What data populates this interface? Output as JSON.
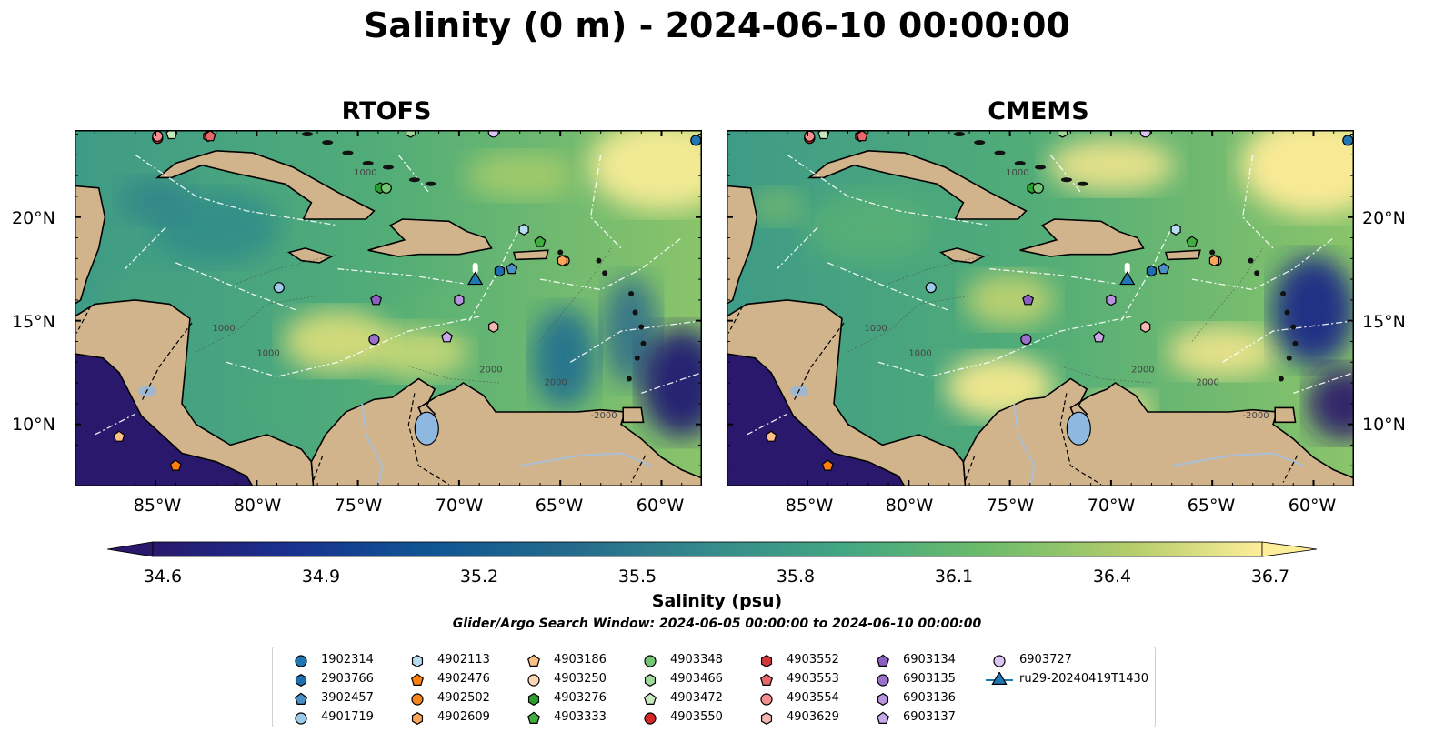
{
  "title": "Salinity (0 m) - 2024-06-10 00:00:00",
  "panels": [
    {
      "name": "RTOFS",
      "variant": "rtofs"
    },
    {
      "name": "CMEMS",
      "variant": "cmems"
    }
  ],
  "map": {
    "lon_range": [
      -89,
      -58
    ],
    "lat_range": [
      7,
      24.2
    ],
    "lat_ticks": [
      "20°N",
      "15°N",
      "10°N"
    ],
    "lon_ticks": [
      "85°W",
      "80°W",
      "75°W",
      "70°W",
      "65°W",
      "60°W"
    ],
    "contour_labels": [
      "1000",
      "1000",
      "2000",
      "2000",
      "-2000",
      "1000"
    ],
    "land_color": "#d2b48c"
  },
  "colorbar": {
    "label": "Salinity (psu)",
    "ticks": [
      "34.6",
      "34.9",
      "35.2",
      "35.5",
      "35.8",
      "36.1",
      "36.4",
      "36.7"
    ],
    "range": [
      34.6,
      36.7
    ],
    "colormap": "haline",
    "extend": "both"
  },
  "search_window": "Glider/Argo Search Window: 2024-06-05 00:00:00 to 2024-06-10 00:00:00",
  "legend": [
    {
      "id": "1902314",
      "marker": "circle",
      "color": "#1f77b4",
      "lon": -58.3,
      "lat": 23.7
    },
    {
      "id": "2903766",
      "marker": "hexagon",
      "color": "#1f6fb0",
      "lon": -68.0,
      "lat": 17.4
    },
    {
      "id": "3902457",
      "marker": "pentagon",
      "color": "#4a90c6",
      "lon": -67.4,
      "lat": 17.5
    },
    {
      "id": "4901719",
      "marker": "circle",
      "color": "#9ec9e8",
      "lon": -78.9,
      "lat": 16.6
    },
    {
      "id": "4902113",
      "marker": "hexagon",
      "color": "#b8dcf2",
      "lon": -66.8,
      "lat": 19.4
    },
    {
      "id": "4902476",
      "marker": "pentagon",
      "color": "#ff7f0e",
      "lon": -84.0,
      "lat": 8.0
    },
    {
      "id": "4902502",
      "marker": "circle",
      "color": "#f5841f",
      "lon": -64.8,
      "lat": 17.9
    },
    {
      "id": "4902609",
      "marker": "hexagon",
      "color": "#f9a65a",
      "lon": -64.9,
      "lat": 17.9
    },
    {
      "id": "4903186",
      "marker": "pentagon",
      "color": "#fdc086",
      "lon": -86.8,
      "lat": 9.4
    },
    {
      "id": "4903250",
      "marker": "circle",
      "color": "#fdd6b3",
      "lon": -84.9,
      "lat": 23.8
    },
    {
      "id": "4903276",
      "marker": "hexagon",
      "color": "#2ca02c",
      "lon": -73.9,
      "lat": 21.4
    },
    {
      "id": "4903333",
      "marker": "pentagon",
      "color": "#3fae3f",
      "lon": -66.0,
      "lat": 18.8
    },
    {
      "id": "4903348",
      "marker": "circle",
      "color": "#74c476",
      "lon": -73.6,
      "lat": 21.4
    },
    {
      "id": "4903466",
      "marker": "hexagon",
      "color": "#a1d99b",
      "lon": -72.4,
      "lat": 24.1
    },
    {
      "id": "4903472",
      "marker": "pentagon",
      "color": "#c7e9c0",
      "lon": -84.2,
      "lat": 24.0
    },
    {
      "id": "4903550",
      "marker": "circle",
      "color": "#d62728",
      "lon": -84.9,
      "lat": 23.8
    },
    {
      "id": "4903552",
      "marker": "hexagon",
      "color": "#d0373b",
      "lon": -82.4,
      "lat": 23.9
    },
    {
      "id": "4903553",
      "marker": "pentagon",
      "color": "#e8676a",
      "lon": -82.3,
      "lat": 23.9
    },
    {
      "id": "4903554",
      "marker": "circle",
      "color": "#f28e8e",
      "lon": -84.9,
      "lat": 23.9
    },
    {
      "id": "4903629",
      "marker": "hexagon",
      "color": "#f4b6b0",
      "lon": -68.3,
      "lat": 14.7
    },
    {
      "id": "6903134",
      "marker": "pentagon",
      "color": "#8a5fbf",
      "lon": -74.1,
      "lat": 16.0
    },
    {
      "id": "6903135",
      "marker": "circle",
      "color": "#9b6fcc",
      "lon": -74.2,
      "lat": 14.1
    },
    {
      "id": "6903136",
      "marker": "hexagon",
      "color": "#b794dd",
      "lon": -70.0,
      "lat": 16.0
    },
    {
      "id": "6903137",
      "marker": "pentagon",
      "color": "#c9a8ea",
      "lon": -70.6,
      "lat": 14.2
    },
    {
      "id": "6903727",
      "marker": "circle",
      "color": "#dcc4f4",
      "lon": -68.3,
      "lat": 24.1
    },
    {
      "id": "ru29-20240419T1430",
      "marker": "triangle-line",
      "color": "#1f77b4",
      "lon": -69.2,
      "lat": 16.95
    }
  ]
}
